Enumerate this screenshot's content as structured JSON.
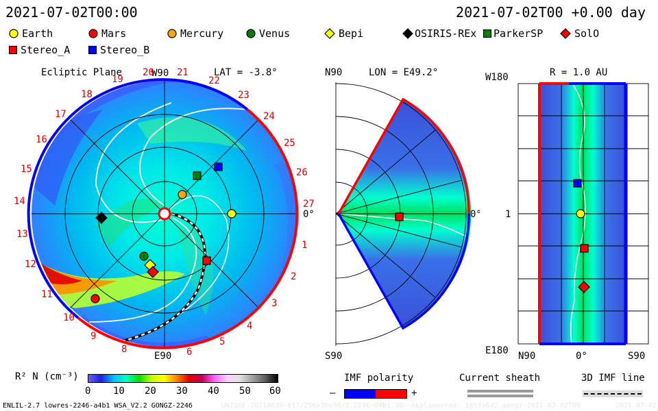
{
  "header": {
    "left_time": "2021-07-02T00:00",
    "right_time": "2021-07-02T00 +0.00 day"
  },
  "legend": [
    {
      "name": "Earth",
      "color": "#ffff00",
      "shape": "circle"
    },
    {
      "name": "Mars",
      "color": "#ff0000",
      "shape": "circle"
    },
    {
      "name": "Mercury",
      "color": "#ffa500",
      "shape": "circle"
    },
    {
      "name": "Venus",
      "color": "#008000",
      "shape": "circle"
    },
    {
      "name": "Bepi",
      "color": "#ffff00",
      "shape": "diamond"
    },
    {
      "name": "OSIRIS-REx",
      "color": "#000000",
      "shape": "diamond"
    },
    {
      "name": "ParkerSP",
      "color": "#008000",
      "shape": "square"
    },
    {
      "name": "SolO",
      "color": "#ff0000",
      "shape": "diamond"
    },
    {
      "name": "Stereo_A",
      "color": "#ff0000",
      "shape": "square"
    },
    {
      "name": "Stereo_B",
      "color": "#0000ff",
      "shape": "square"
    }
  ],
  "ecliptic": {
    "title": "Ecliptic Plane",
    "w90": "W90",
    "lat": "LAT = -3.8°",
    "e90": "E90",
    "zero": "0°",
    "rotations_left": [
      "19",
      "18",
      "17",
      "16",
      "15",
      "14",
      "13",
      "12",
      "11",
      "10",
      "9",
      "8"
    ],
    "rotations_top": [
      "20",
      "21",
      "22",
      "23"
    ],
    "rotations_right": [
      "24",
      "25",
      "26",
      "27",
      "1",
      "2",
      "3",
      "4",
      "5",
      "6"
    ]
  },
  "meridional": {
    "n90": "N90",
    "lon": "LON = E49.2°",
    "s90": "S90",
    "zero": "0°"
  },
  "radial": {
    "w180": "W180",
    "r": "R = 1.0 AU",
    "one": "1",
    "e180": "E180",
    "n90": "N90",
    "zero": "0°",
    "s90": "S90"
  },
  "colorbar": {
    "label": "R² N (cm⁻³)",
    "ticks": [
      "0",
      "10",
      "20",
      "30",
      "40",
      "50",
      "60"
    ],
    "stops": [
      "#6060ff",
      "#2020e0",
      "#00c0ff",
      "#00ffc0",
      "#00e000",
      "#c0ff00",
      "#ffff00",
      "#ff8000",
      "#e00000",
      "#c00060",
      "#ff60ff",
      "#ffd0ff",
      "#e0e0e0",
      "#a0a0a0",
      "#606060",
      "#000000"
    ]
  },
  "imf": {
    "title": "IMF polarity",
    "minus": "–",
    "plus": "+",
    "neg_color": "#0000ff",
    "pos_color": "#ff0000"
  },
  "sheath": {
    "title": "Current sheath"
  },
  "imf3d": {
    "title": "3D IMF line"
  },
  "footer": {
    "model": "ENLIL-2.7 lowres-2246-a4b1 WSA_V2.2 GONGZ-2246",
    "run": "UNIQUE:20210630-617/256x30x90/1.2246-a4b1.30--nsplannerad--1g53a6d2.gongz-2021-07-02T00",
    "date": "2021-07-02"
  }
}
